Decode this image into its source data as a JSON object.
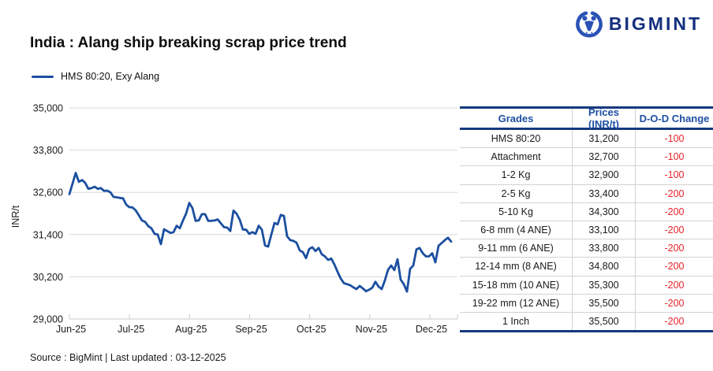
{
  "logo": {
    "text": "BIGMINT"
  },
  "title": "India : Alang ship breaking scrap price trend",
  "legend": {
    "label": "HMS 80:20, Exy Alang"
  },
  "chart_data": {
    "type": "line",
    "title": "India : Alang ship breaking scrap price trend",
    "series_name": "HMS 80:20, Exy Alang",
    "ylabel": "INR/t",
    "ylim": [
      29000,
      35000
    ],
    "grid": true,
    "legend_position": "top-left",
    "line_color": "#1b4fa0",
    "y_ticks": [
      35000,
      33800,
      32600,
      31400,
      30200,
      29000
    ],
    "y_tick_labels": [
      "35,000",
      "33,800",
      "32,600",
      "31,400",
      "30,200",
      "29,000"
    ],
    "x_tick_labels": [
      "Jun-25",
      "Jul-25",
      "Aug-25",
      "Sep-25",
      "Oct-25",
      "Nov-25",
      "Dec-25"
    ],
    "values": [
      32550,
      32850,
      33150,
      32900,
      32950,
      32870,
      32700,
      32720,
      32760,
      32700,
      32720,
      32640,
      32650,
      32600,
      32470,
      32460,
      32440,
      32430,
      32250,
      32180,
      32170,
      32090,
      31950,
      31800,
      31760,
      31640,
      31580,
      31420,
      31400,
      31130,
      31550,
      31500,
      31450,
      31470,
      31650,
      31580,
      31800,
      32000,
      32300,
      32150,
      31790,
      31800,
      31980,
      31980,
      31790,
      31790,
      31800,
      31830,
      31720,
      31610,
      31600,
      31500,
      32080,
      31990,
      31820,
      31540,
      31540,
      31420,
      31470,
      31420,
      31650,
      31540,
      31090,
      31060,
      31400,
      31730,
      31690,
      31960,
      31930,
      31350,
      31240,
      31220,
      31170,
      30950,
      30900,
      30730,
      30990,
      31040,
      30930,
      31020,
      30840,
      30780,
      30680,
      30720,
      30550,
      30340,
      30150,
      30020,
      29990,
      29960,
      29900,
      29850,
      29940,
      29870,
      29790,
      29830,
      29890,
      30060,
      29920,
      29850,
      30100,
      30400,
      30520,
      30390,
      30700,
      30120,
      29990,
      29780,
      30430,
      30520,
      30980,
      31020,
      30870,
      30780,
      30780,
      30870,
      30610,
      31080,
      31160,
      31240,
      31310,
      31200
    ]
  },
  "table": {
    "headers": [
      "Grades",
      "Prices (INR/t)",
      "D-O-D Change"
    ],
    "rows": [
      {
        "grade": "HMS 80:20",
        "price": "31,200",
        "change": "-100"
      },
      {
        "grade": "Attachment",
        "price": "32,700",
        "change": "-100"
      },
      {
        "grade": "1-2 Kg",
        "price": "32,900",
        "change": "-100"
      },
      {
        "grade": "2-5 Kg",
        "price": "33,400",
        "change": "-200"
      },
      {
        "grade": "5-10 Kg",
        "price": "34,300",
        "change": "-200"
      },
      {
        "grade": "6-8 mm (4 ANE)",
        "price": "33,100",
        "change": "-200"
      },
      {
        "grade": "9-11 mm (6 ANE)",
        "price": "33,800",
        "change": "-200"
      },
      {
        "grade": "12-14 mm (8 ANE)",
        "price": "34,800",
        "change": "-200"
      },
      {
        "grade": "15-18 mm (10 ANE)",
        "price": "35,300",
        "change": "-200"
      },
      {
        "grade": "19-22 mm (12 ANE)",
        "price": "35,500",
        "change": "-200"
      },
      {
        "grade": "1 Inch",
        "price": "35,500",
        "change": "-200"
      }
    ],
    "change_color": "#e8232a",
    "accent_color": "#1d4fa3"
  },
  "footer": {
    "source": "Source : BigMint | Last updated : 03-12-2025"
  }
}
